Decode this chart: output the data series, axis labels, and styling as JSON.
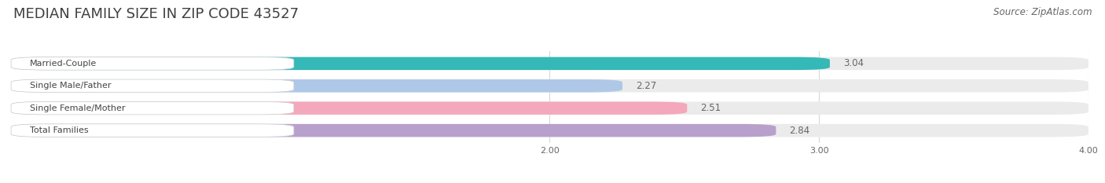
{
  "title": "MEDIAN FAMILY SIZE IN ZIP CODE 43527",
  "source": "Source: ZipAtlas.com",
  "categories": [
    "Married-Couple",
    "Single Male/Father",
    "Single Female/Mother",
    "Total Families"
  ],
  "values": [
    3.04,
    2.27,
    2.51,
    2.84
  ],
  "bar_colors": [
    "#35b8b8",
    "#b0c8e8",
    "#f4a8bc",
    "#b8a0cc"
  ],
  "xlim": [
    0,
    4.0
  ],
  "xticks": [
    2.0,
    3.0,
    4.0
  ],
  "background_color": "#ffffff",
  "bar_background_color": "#ebebeb",
  "title_fontsize": 13,
  "source_fontsize": 8.5,
  "label_fontsize": 8,
  "value_fontsize": 8.5,
  "bar_height": 0.58
}
